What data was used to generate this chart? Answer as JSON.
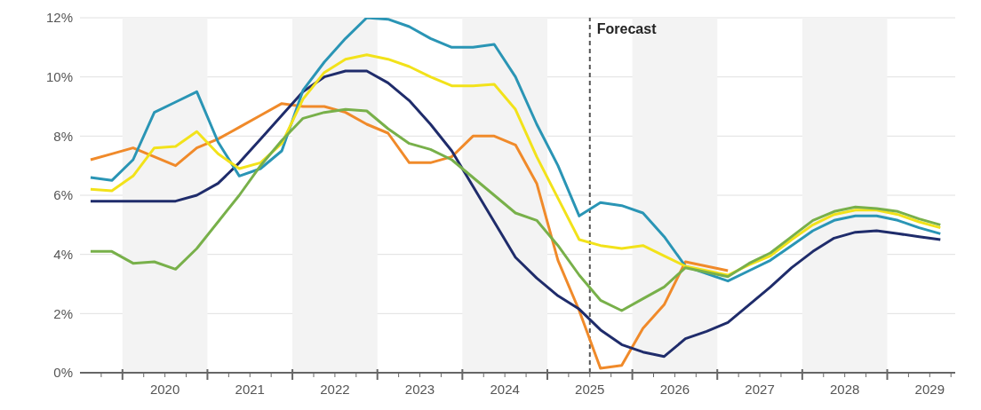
{
  "chart_data": {
    "type": "line",
    "x": [
      2019.625,
      2019.875,
      2020.125,
      2020.375,
      2020.625,
      2020.875,
      2021.125,
      2021.375,
      2021.625,
      2021.875,
      2022.125,
      2022.375,
      2022.625,
      2022.875,
      2023.125,
      2023.375,
      2023.625,
      2023.875,
      2024.125,
      2024.375,
      2024.625,
      2024.875,
      2025.125,
      2025.375,
      2025.625,
      2025.875,
      2026.125,
      2026.375,
      2026.625,
      2026.875,
      2027.125,
      2027.375,
      2027.625,
      2027.875,
      2028.125,
      2028.375,
      2028.625,
      2028.875,
      2029.125,
      2029.375,
      2029.625
    ],
    "series": [
      {
        "color": "#f08a2a",
        "values": [
          7.2,
          7.4,
          7.6,
          7.3,
          7.0,
          7.6,
          7.9,
          8.3,
          8.7,
          9.1,
          9.0,
          9.0,
          8.8,
          8.4,
          8.1,
          7.1,
          7.1,
          7.3,
          8.0,
          8.0,
          7.7,
          6.4,
          3.8,
          2.1,
          0.15,
          0.25,
          1.5,
          2.3,
          3.75,
          3.6,
          3.45,
          null,
          null,
          null,
          null,
          null,
          null,
          null,
          null,
          null,
          null
        ]
      },
      {
        "color": "#1f2c6b",
        "values": [
          5.8,
          5.8,
          5.8,
          5.8,
          5.8,
          6.0,
          6.4,
          7.1,
          7.9,
          8.7,
          9.5,
          10.0,
          10.2,
          10.2,
          9.8,
          9.2,
          8.4,
          7.5,
          6.3,
          5.1,
          3.9,
          3.2,
          2.6,
          2.15,
          1.45,
          0.95,
          0.7,
          0.55,
          1.15,
          1.4,
          1.7,
          2.3,
          2.9,
          3.55,
          4.1,
          4.55,
          4.75,
          4.8,
          4.7,
          4.6,
          4.5
        ]
      },
      {
        "color": "#2a95b5",
        "values": [
          6.6,
          6.5,
          7.2,
          8.8,
          9.15,
          9.5,
          7.8,
          6.65,
          6.9,
          7.5,
          9.55,
          10.5,
          11.3,
          12.0,
          11.95,
          11.7,
          11.3,
          11.0,
          11.0,
          11.1,
          10.0,
          8.4,
          7.0,
          5.3,
          5.75,
          5.65,
          5.4,
          4.6,
          3.6,
          3.35,
          3.1,
          3.45,
          3.8,
          4.3,
          4.8,
          5.15,
          5.3,
          5.3,
          5.15,
          4.9,
          4.7
        ]
      },
      {
        "color": "#f2e21a",
        "values": [
          6.2,
          6.15,
          6.65,
          7.6,
          7.65,
          8.15,
          7.4,
          6.9,
          7.1,
          7.75,
          9.25,
          10.15,
          10.6,
          10.75,
          10.6,
          10.35,
          10.0,
          9.7,
          9.7,
          9.75,
          8.9,
          7.3,
          5.9,
          4.5,
          4.3,
          4.2,
          4.3,
          3.95,
          3.6,
          3.45,
          3.3,
          3.65,
          3.95,
          4.5,
          5.0,
          5.35,
          5.5,
          5.5,
          5.35,
          5.1,
          4.9
        ]
      },
      {
        "color": "#78b04a",
        "values": [
          4.1,
          4.1,
          3.7,
          3.75,
          3.5,
          4.2,
          5.1,
          6.0,
          7.0,
          7.85,
          8.6,
          8.8,
          8.9,
          8.85,
          8.25,
          7.75,
          7.55,
          7.2,
          6.6,
          6.0,
          5.4,
          5.15,
          4.3,
          3.3,
          2.45,
          2.1,
          2.5,
          2.9,
          3.55,
          3.4,
          3.25,
          3.7,
          4.05,
          4.6,
          5.15,
          5.45,
          5.6,
          5.55,
          5.45,
          5.2,
          5.0
        ]
      }
    ],
    "xlim": [
      2019.5,
      2029.8
    ],
    "xticks": [
      {
        "value": 2019.75,
        "label": null
      },
      {
        "value": 2020,
        "label": null
      },
      {
        "value": 2020.25,
        "label": null
      },
      {
        "value": 2020.5,
        "label": "2020"
      },
      {
        "value": 2020.75,
        "label": null
      },
      {
        "value": 2021,
        "label": null
      },
      {
        "value": 2021.25,
        "label": null
      },
      {
        "value": 2021.5,
        "label": "2021"
      },
      {
        "value": 2021.75,
        "label": null
      },
      {
        "value": 2022,
        "label": null
      },
      {
        "value": 2022.25,
        "label": null
      },
      {
        "value": 2022.5,
        "label": "2022"
      },
      {
        "value": 2022.75,
        "label": null
      },
      {
        "value": 2023,
        "label": null
      },
      {
        "value": 2023.25,
        "label": null
      },
      {
        "value": 2023.5,
        "label": "2023"
      },
      {
        "value": 2023.75,
        "label": null
      },
      {
        "value": 2024,
        "label": null
      },
      {
        "value": 2024.25,
        "label": null
      },
      {
        "value": 2024.5,
        "label": "2024"
      },
      {
        "value": 2024.75,
        "label": null
      },
      {
        "value": 2025,
        "label": null
      },
      {
        "value": 2025.25,
        "label": null
      },
      {
        "value": 2025.5,
        "label": "2025"
      },
      {
        "value": 2025.75,
        "label": null
      },
      {
        "value": 2026,
        "label": null
      },
      {
        "value": 2026.25,
        "label": null
      },
      {
        "value": 2026.5,
        "label": "2026"
      },
      {
        "value": 2026.75,
        "label": null
      },
      {
        "value": 2027,
        "label": null
      },
      {
        "value": 2027.25,
        "label": null
      },
      {
        "value": 2027.5,
        "label": "2027"
      },
      {
        "value": 2027.75,
        "label": null
      },
      {
        "value": 2028,
        "label": null
      },
      {
        "value": 2028.25,
        "label": null
      },
      {
        "value": 2028.5,
        "label": "2028"
      },
      {
        "value": 2028.75,
        "label": null
      },
      {
        "value": 2029,
        "label": null
      },
      {
        "value": 2029.25,
        "label": null
      },
      {
        "value": 2029.5,
        "label": "2029"
      },
      {
        "value": 2029.75,
        "label": null
      }
    ],
    "ylim": [
      0,
      12
    ],
    "yticks": [
      {
        "value": 0,
        "label": "0%"
      },
      {
        "value": 2,
        "label": "2%"
      },
      {
        "value": 4,
        "label": "4%"
      },
      {
        "value": 6,
        "label": "6%"
      },
      {
        "value": 8,
        "label": "8%"
      },
      {
        "value": 10,
        "label": "10%"
      },
      {
        "value": 12,
        "label": "12%"
      }
    ],
    "grid": "y",
    "marker": "none",
    "line_style": "solid",
    "ref_lines": [
      {
        "axis": "x",
        "value": 2025.5,
        "label": "Forecast",
        "color": "#555555",
        "line_style": "dashed"
      }
    ],
    "bands": [
      {
        "axis": "x",
        "from": 2020,
        "to": 2021,
        "color": "#f3f3f3"
      },
      {
        "axis": "x",
        "from": 2022,
        "to": 2023,
        "color": "#f3f3f3"
      },
      {
        "axis": "x",
        "from": 2024,
        "to": 2025,
        "color": "#f3f3f3"
      },
      {
        "axis": "x",
        "from": 2026,
        "to": 2027,
        "color": "#f3f3f3"
      },
      {
        "axis": "x",
        "from": 2028,
        "to": 2029,
        "color": "#f3f3f3"
      }
    ]
  }
}
